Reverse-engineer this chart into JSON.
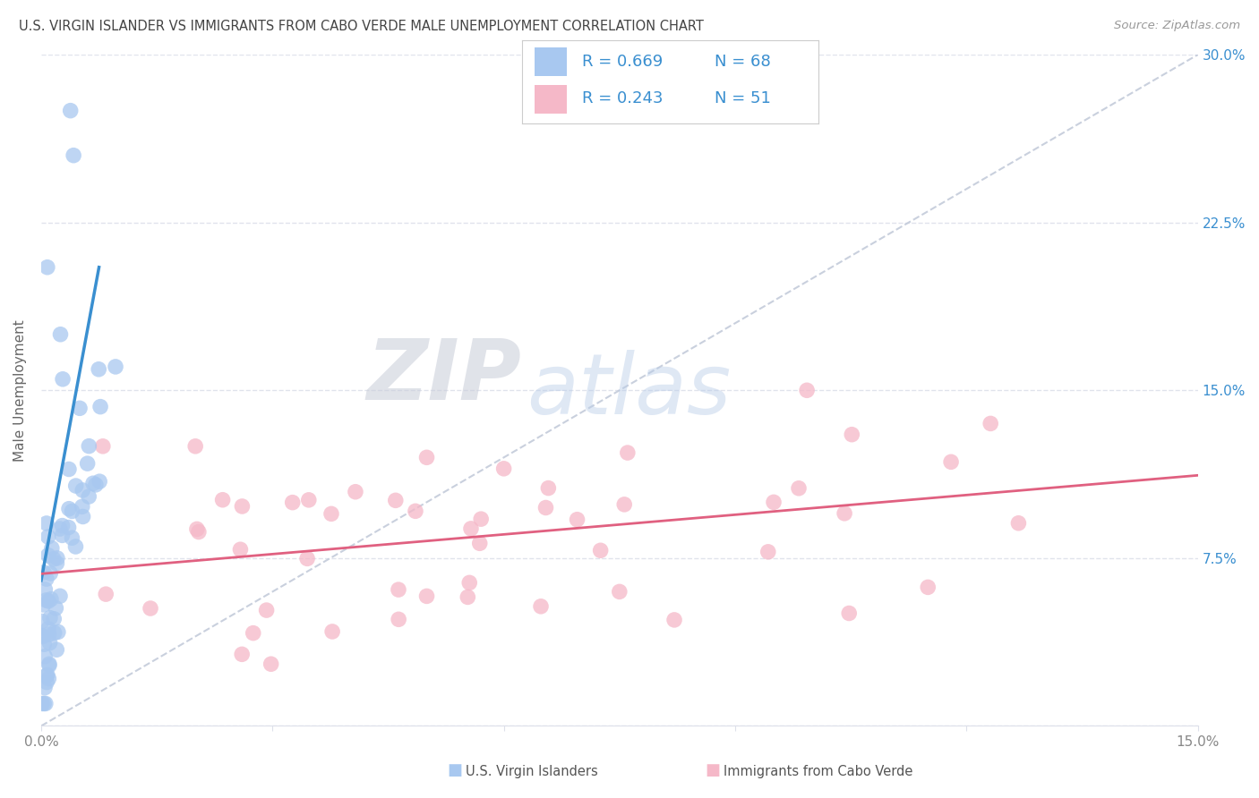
{
  "title": "U.S. VIRGIN ISLANDER VS IMMIGRANTS FROM CABO VERDE MALE UNEMPLOYMENT CORRELATION CHART",
  "source": "Source: ZipAtlas.com",
  "ylabel": "Male Unemployment",
  "x_min": 0.0,
  "x_max": 0.15,
  "y_min": 0.0,
  "y_max": 0.3,
  "x_ticks": [
    0.0,
    0.03,
    0.06,
    0.09,
    0.12,
    0.15
  ],
  "x_tick_labels": [
    "0.0%",
    "",
    "",
    "",
    "",
    "15.0%"
  ],
  "y_ticks": [
    0.0,
    0.075,
    0.15,
    0.225,
    0.3
  ],
  "y_tick_labels_right": [
    "",
    "7.5%",
    "15.0%",
    "22.5%",
    "30.0%"
  ],
  "series1_color": "#a8c8f0",
  "series2_color": "#f5b8c8",
  "series1_label": "U.S. Virgin Islanders",
  "series2_label": "Immigrants from Cabo Verde",
  "series1_R": "0.669",
  "series1_N": "68",
  "series2_R": "0.243",
  "series2_N": "51",
  "trend1_color": "#3a8fd0",
  "trend2_color": "#e06080",
  "diagonal_color": "#c0c8d8",
  "watermark_zip": "ZIP",
  "watermark_atlas": "atlas",
  "watermark_zip_color": "#c8ccd8",
  "watermark_atlas_color": "#b8cce8",
  "background_color": "#ffffff",
  "grid_color": "#dde0ea",
  "legend_border_color": "#cccccc",
  "tick_color": "#888888",
  "title_color": "#444444",
  "ylabel_color": "#666666"
}
